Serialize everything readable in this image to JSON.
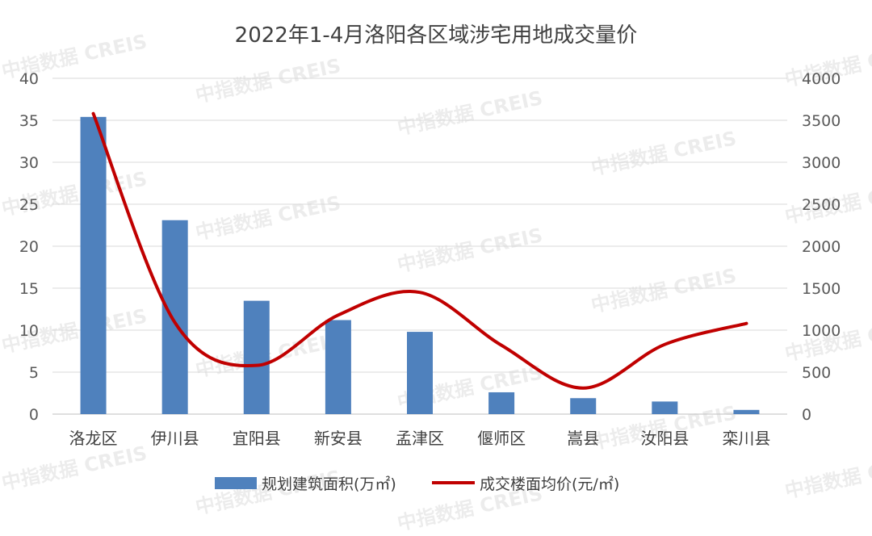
{
  "chart_data": {
    "type": "bar+line",
    "title": "2022年1-4月洛阳各区域涉宅用地成交量价",
    "categories": [
      "洛龙区",
      "伊川县",
      "宜阳县",
      "新安县",
      "孟津区",
      "偃师区",
      "嵩县",
      "汝阳县",
      "栾川县"
    ],
    "series": [
      {
        "name": "规划建筑面积(万㎡)",
        "type": "bar",
        "axis": "left",
        "color": "#4F81BD",
        "values": [
          35.4,
          23.1,
          13.5,
          11.2,
          9.8,
          2.6,
          1.9,
          1.5,
          0.5
        ]
      },
      {
        "name": "成交楼面均价(元/㎡)",
        "type": "line",
        "axis": "right",
        "color": "#C00000",
        "smooth": true,
        "values": [
          3580,
          1090,
          580,
          1180,
          1450,
          820,
          310,
          830,
          1080
        ]
      }
    ],
    "left_axis": {
      "range": [
        0,
        40
      ],
      "ticks": [
        "0",
        "5",
        "10",
        "15",
        "20",
        "25",
        "30",
        "35",
        "40"
      ]
    },
    "right_axis": {
      "range": [
        0,
        4000
      ],
      "ticks": [
        "0",
        "500",
        "1000",
        "1500",
        "2000",
        "2500",
        "3000",
        "3500",
        "4000"
      ]
    },
    "grid": true,
    "legend": "bottom"
  },
  "watermark": "中指数据 CREIS"
}
